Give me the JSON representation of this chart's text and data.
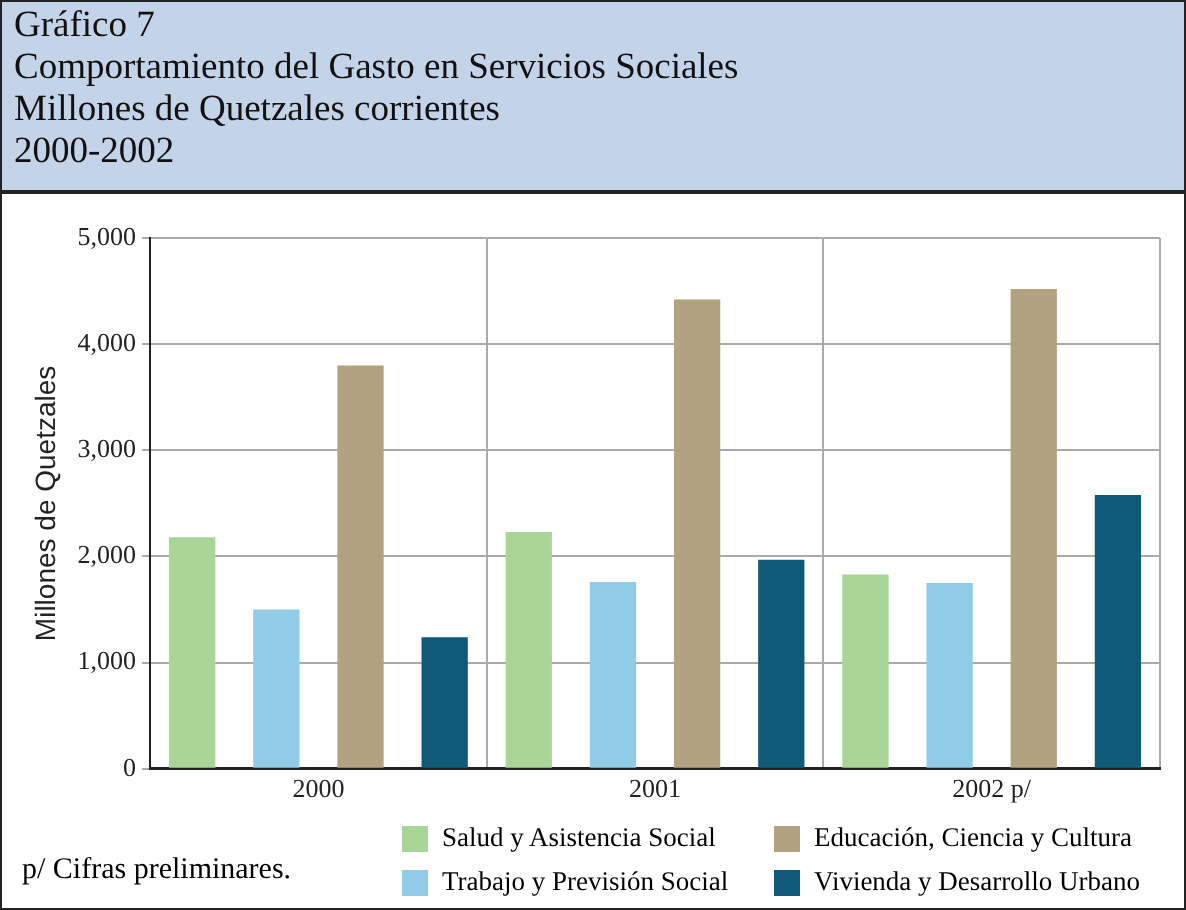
{
  "chart_data": {
    "type": "bar",
    "title": "Gráfico 7\nComportamiento del Gasto en Servicios Sociales\nMillones de Quetzales corrientes\n2000-2002",
    "ylabel": "Millones de Quetzales",
    "categories": [
      "2000",
      "2001",
      "2002 p/"
    ],
    "series": [
      {
        "name": "Salud y Asistencia Social",
        "color": "#a9d597",
        "values": [
          2180,
          2230,
          1830
        ]
      },
      {
        "name": "Trabajo y Previsión Social",
        "color": "#90cbe8",
        "values": [
          1500,
          1760,
          1750
        ]
      },
      {
        "name": "Educación, Ciencia y Cultura",
        "color": "#b2a27f",
        "values": [
          3800,
          4420,
          4520
        ]
      },
      {
        "name": "Vivienda y Desarrollo Urbano",
        "color": "#0f5a78",
        "values": [
          1240,
          1970,
          2580
        ]
      }
    ],
    "ylim": [
      0,
      5000
    ],
    "yticks": [
      {
        "value": 0,
        "label": "0"
      },
      {
        "value": 1000,
        "label": "1,000"
      },
      {
        "value": 2000,
        "label": "2,000"
      },
      {
        "value": 3000,
        "label": "3,000"
      },
      {
        "value": 4000,
        "label": "4,000"
      },
      {
        "value": 5000,
        "label": "5,000"
      }
    ],
    "grid": true,
    "legend": "bottom",
    "annotations": [
      "p/ Cifras preliminares."
    ]
  }
}
